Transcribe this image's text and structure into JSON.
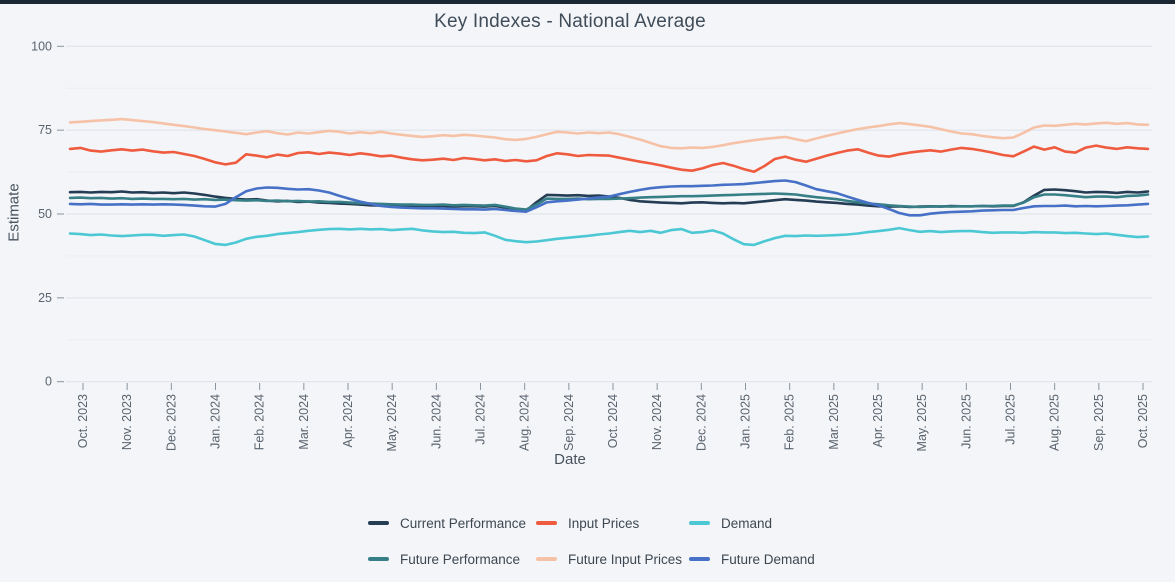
{
  "chart_data": {
    "type": "line",
    "title": "Key Indexes - National Average",
    "xlabel": "Date",
    "ylabel": "Estimate",
    "ylim": [
      0,
      100
    ],
    "yticks": [
      0,
      25,
      50,
      75,
      100
    ],
    "minor_yticks": [
      12.5,
      37.5,
      62.5,
      87.5
    ],
    "grid": true,
    "legend_position": "bottom",
    "sampling": "weekly",
    "x_tick_labels": [
      "Oct. 2023",
      "Nov. 2023",
      "Dec. 2023",
      "Jan. 2024",
      "Feb. 2024",
      "Mar. 2024",
      "Apr. 2024",
      "May. 2024",
      "Jun. 2024",
      "Jul. 2024",
      "Aug. 2024",
      "Sep. 2024",
      "Oct. 2024",
      "Nov. 2024",
      "Dec. 2024",
      "Jan. 2025",
      "Feb. 2025",
      "Mar. 2025",
      "Apr. 2025",
      "May. 2025",
      "Jun. 2025",
      "Jul. 2025",
      "Aug. 2025",
      "Sep. 2025",
      "Oct. 2025"
    ],
    "series": [
      {
        "name": "Current Performance",
        "color": "#243c54",
        "values": [
          56.5,
          56.6,
          56.4,
          56.6,
          56.5,
          56.7,
          56.4,
          56.5,
          56.3,
          56.4,
          56.2,
          56.4,
          56.1,
          55.7,
          55.2,
          54.8,
          54.5,
          54.3,
          54.4,
          54.0,
          53.8,
          53.9,
          53.6,
          53.7,
          53.4,
          53.3,
          53.1,
          53.0,
          52.8,
          52.6,
          52.5,
          52.6,
          52.4,
          52.5,
          52.3,
          52.3,
          52.4,
          52.2,
          52.3,
          52.3,
          52.2,
          52.4,
          51.9,
          51.3,
          51.0,
          53.5,
          55.7,
          55.6,
          55.5,
          55.6,
          55.4,
          55.5,
          55.2,
          54.8,
          54.2,
          53.8,
          53.6,
          53.4,
          53.3,
          53.2,
          53.4,
          53.5,
          53.3,
          53.2,
          53.3,
          53.2,
          53.5,
          53.8,
          54.1,
          54.4,
          54.2,
          54.0,
          53.7,
          53.5,
          53.3,
          53.0,
          52.8,
          52.5,
          52.3,
          52.2,
          52.3,
          52.1,
          52.2,
          52.3,
          52.2,
          52.4,
          52.3,
          52.3,
          52.4,
          52.3,
          52.4,
          52.4,
          53.5,
          55.5,
          57.2,
          57.3,
          57.1,
          56.8,
          56.4,
          56.6,
          56.5,
          56.3,
          56.6,
          56.4,
          56.7
        ]
      },
      {
        "name": "Input Prices",
        "color": "#ef5b3e",
        "values": [
          69.4,
          69.7,
          68.9,
          68.6,
          69.0,
          69.3,
          68.9,
          69.2,
          68.7,
          68.3,
          68.5,
          67.9,
          67.3,
          66.4,
          65.4,
          64.8,
          65.3,
          67.8,
          67.4,
          66.9,
          67.7,
          67.3,
          68.2,
          68.4,
          67.9,
          68.3,
          68.0,
          67.6,
          68.1,
          67.7,
          67.2,
          67.4,
          66.8,
          66.3,
          66.0,
          66.2,
          66.5,
          66.1,
          66.7,
          66.4,
          66.0,
          66.3,
          65.8,
          66.1,
          65.7,
          66.0,
          67.3,
          68.1,
          67.8,
          67.3,
          67.6,
          67.5,
          67.4,
          66.8,
          66.2,
          65.6,
          65.1,
          64.5,
          63.8,
          63.2,
          62.9,
          63.6,
          64.6,
          65.2,
          64.4,
          63.4,
          62.6,
          64.3,
          66.4,
          67.1,
          66.2,
          65.6,
          66.5,
          67.4,
          68.2,
          68.9,
          69.3,
          68.3,
          67.4,
          67.1,
          67.8,
          68.3,
          68.7,
          69.0,
          68.6,
          69.2,
          69.7,
          69.4,
          68.9,
          68.3,
          67.6,
          67.2,
          68.6,
          70.1,
          69.2,
          69.9,
          68.6,
          68.3,
          69.8,
          70.4,
          69.8,
          69.4,
          69.9,
          69.6,
          69.4
        ]
      },
      {
        "name": "Demand",
        "color": "#4cc8d4",
        "values": [
          44.2,
          44.0,
          43.7,
          43.9,
          43.6,
          43.4,
          43.6,
          43.8,
          43.8,
          43.5,
          43.7,
          43.9,
          43.3,
          42.2,
          41.1,
          40.8,
          41.5,
          42.6,
          43.2,
          43.5,
          44.0,
          44.3,
          44.6,
          45.0,
          45.3,
          45.5,
          45.6,
          45.4,
          45.6,
          45.4,
          45.5,
          45.2,
          45.4,
          45.6,
          45.1,
          44.8,
          44.6,
          44.7,
          44.4,
          44.3,
          44.5,
          43.5,
          42.3,
          41.9,
          41.6,
          41.8,
          42.2,
          42.6,
          42.9,
          43.2,
          43.5,
          43.9,
          44.2,
          44.6,
          45.0,
          44.6,
          45.0,
          44.4,
          45.2,
          45.5,
          44.4,
          44.6,
          45.1,
          44.2,
          42.5,
          41.0,
          40.8,
          41.9,
          42.8,
          43.5,
          43.4,
          43.6,
          43.5,
          43.6,
          43.7,
          43.9,
          44.2,
          44.6,
          44.9,
          45.3,
          45.8,
          45.2,
          44.7,
          44.9,
          44.6,
          44.8,
          44.9,
          44.9,
          44.6,
          44.4,
          44.5,
          44.5,
          44.4,
          44.6,
          44.5,
          44.5,
          44.3,
          44.4,
          44.2,
          44.0,
          44.2,
          43.8,
          43.4,
          43.1,
          43.3
        ]
      },
      {
        "name": "Future Performance",
        "color": "#377f86",
        "values": [
          54.8,
          54.9,
          54.7,
          54.8,
          54.6,
          54.7,
          54.5,
          54.6,
          54.5,
          54.5,
          54.4,
          54.5,
          54.3,
          54.4,
          54.2,
          54.3,
          54.1,
          54.0,
          54.1,
          53.9,
          54.0,
          53.8,
          53.9,
          53.7,
          53.8,
          53.6,
          53.6,
          53.4,
          53.2,
          53.1,
          53.0,
          52.9,
          52.8,
          52.8,
          52.7,
          52.7,
          52.8,
          52.6,
          52.7,
          52.6,
          52.5,
          52.7,
          52.2,
          51.6,
          51.3,
          52.8,
          54.6,
          54.5,
          54.5,
          54.6,
          54.4,
          54.5,
          54.5,
          54.6,
          54.7,
          54.9,
          55.0,
          55.1,
          55.2,
          55.3,
          55.3,
          55.4,
          55.5,
          55.6,
          55.7,
          55.8,
          55.9,
          56.0,
          56.1,
          56.0,
          55.8,
          55.4,
          55.0,
          54.7,
          54.4,
          53.9,
          53.5,
          53.1,
          52.9,
          52.6,
          52.4,
          52.2,
          52.1,
          52.2,
          52.3,
          52.2,
          52.3,
          52.3,
          52.4,
          52.4,
          52.5,
          52.5,
          53.4,
          55.0,
          55.8,
          55.8,
          55.6,
          55.3,
          55.0,
          55.2,
          55.2,
          55.0,
          55.4,
          55.5,
          55.8
        ]
      },
      {
        "name": "Future Input Prices",
        "color": "#f6c2a7",
        "values": [
          77.3,
          77.5,
          77.7,
          77.9,
          78.1,
          78.3,
          78.0,
          77.7,
          77.4,
          77.0,
          76.6,
          76.2,
          75.8,
          75.3,
          75.0,
          74.6,
          74.2,
          73.8,
          74.3,
          74.7,
          74.1,
          73.7,
          74.3,
          74.0,
          74.4,
          74.8,
          74.5,
          74.0,
          74.4,
          74.1,
          74.5,
          74.0,
          73.6,
          73.3,
          73.0,
          73.2,
          73.5,
          73.3,
          73.6,
          73.4,
          73.1,
          72.8,
          72.3,
          72.1,
          72.4,
          73.0,
          73.8,
          74.5,
          74.3,
          74.0,
          74.3,
          74.1,
          74.3,
          73.8,
          73.0,
          72.2,
          71.2,
          70.2,
          69.7,
          69.6,
          69.8,
          69.7,
          70.0,
          70.5,
          71.1,
          71.6,
          72.0,
          72.4,
          72.7,
          73.0,
          72.3,
          71.7,
          72.5,
          73.3,
          74.0,
          74.7,
          75.3,
          75.8,
          76.2,
          76.7,
          77.1,
          76.8,
          76.4,
          76.0,
          75.3,
          74.6,
          74.0,
          73.8,
          73.3,
          72.9,
          72.6,
          72.8,
          74.2,
          75.8,
          76.4,
          76.3,
          76.6,
          76.9,
          76.7,
          77.0,
          77.2,
          76.9,
          77.1,
          76.7,
          76.6
        ]
      },
      {
        "name": "Future Demand",
        "color": "#4671c6",
        "values": [
          53.0,
          52.9,
          53.0,
          52.8,
          52.8,
          52.9,
          52.8,
          52.9,
          52.8,
          52.9,
          52.8,
          52.7,
          52.5,
          52.3,
          52.2,
          53.0,
          55.0,
          56.8,
          57.6,
          57.9,
          57.8,
          57.5,
          57.3,
          57.4,
          57.0,
          56.4,
          55.4,
          54.5,
          53.7,
          53.0,
          52.4,
          52.1,
          51.9,
          51.8,
          51.7,
          51.7,
          51.6,
          51.5,
          51.4,
          51.4,
          51.3,
          51.5,
          51.2,
          50.9,
          50.7,
          52.0,
          53.5,
          53.8,
          54.0,
          54.3,
          54.6,
          54.9,
          55.2,
          55.9,
          56.6,
          57.2,
          57.7,
          58.0,
          58.2,
          58.3,
          58.3,
          58.4,
          58.5,
          58.7,
          58.8,
          58.9,
          59.2,
          59.5,
          59.8,
          60.0,
          59.5,
          58.5,
          57.4,
          56.8,
          56.2,
          55.2,
          54.2,
          53.3,
          52.6,
          51.5,
          50.3,
          49.6,
          49.6,
          50.1,
          50.4,
          50.6,
          50.7,
          50.8,
          51.0,
          51.1,
          51.2,
          51.2,
          51.8,
          52.3,
          52.4,
          52.4,
          52.5,
          52.3,
          52.4,
          52.3,
          52.4,
          52.5,
          52.6,
          52.8,
          53.0
        ]
      }
    ],
    "legend_rows": [
      [
        "Current Performance",
        "Input Prices",
        "Demand"
      ],
      [
        "Future Performance",
        "Future Input Prices",
        "Future Demand"
      ]
    ]
  },
  "style": {
    "background": "#f4f5f8",
    "topbar_color": "#1b2733",
    "major_grid_color": "#dce1e8",
    "minor_grid_color": "#e9edf1",
    "tick_color": "#8a949d",
    "tick_text_color": "#5a646e",
    "title_color": "#3f4c59"
  }
}
